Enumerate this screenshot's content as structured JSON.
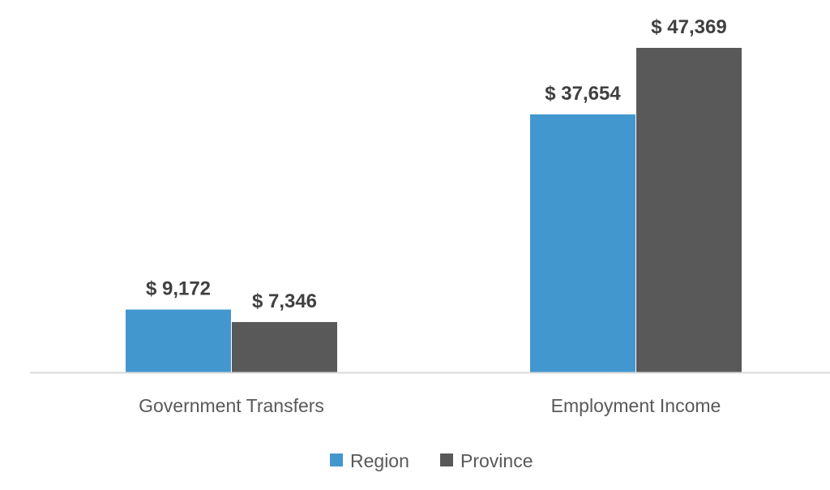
{
  "chart_data": {
    "type": "bar",
    "categories": [
      "Government Transfers",
      "Employment Income"
    ],
    "series": [
      {
        "name": "Region",
        "values": [
          9172,
          37654
        ],
        "labels": [
          "$ 9,172",
          "$ 37,654"
        ],
        "color": "#4397CF"
      },
      {
        "name": "Province",
        "values": [
          7346,
          47369
        ],
        "labels": [
          "$ 7,346",
          "$ 47,369"
        ],
        "color": "#595959"
      }
    ],
    "ylim": [
      0,
      47369
    ],
    "grid": false,
    "legend_placement": "bottom",
    "axis_color": "#D9D9D9"
  }
}
